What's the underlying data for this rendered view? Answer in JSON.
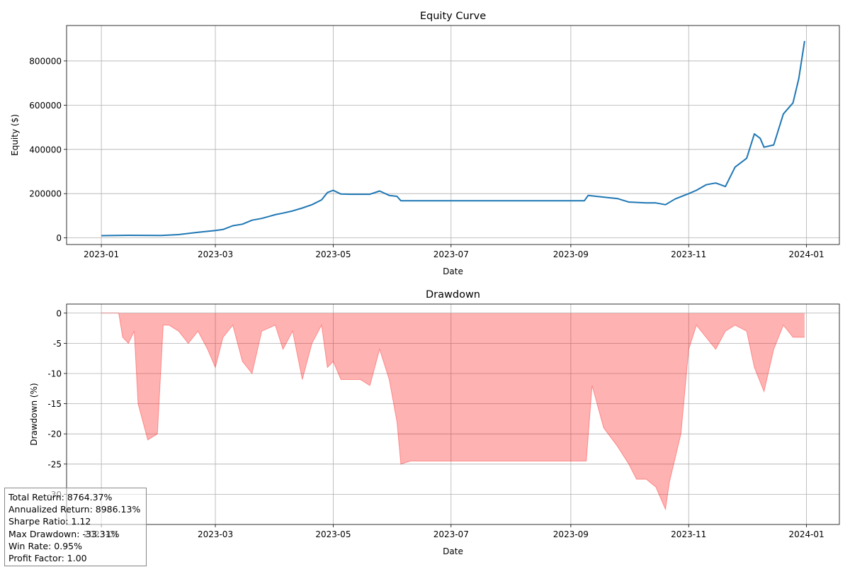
{
  "chart_data": [
    {
      "type": "line",
      "title": "Equity Curve",
      "xlabel": "Date",
      "ylabel": "Equity ($)",
      "grid": true,
      "color": "#1f77b4",
      "xlim": [
        "2022-12-14",
        "2024-01-18"
      ],
      "ylim": [
        -30000,
        960000
      ],
      "x_ticks": [
        "2023-01",
        "2023-03",
        "2023-05",
        "2023-07",
        "2023-09",
        "2023-11",
        "2024-01"
      ],
      "y_ticks": [
        0,
        200000,
        400000,
        600000,
        800000
      ],
      "series": [
        {
          "x": [
            "2023-01-01",
            "2023-01-15",
            "2023-02-01",
            "2023-02-10",
            "2023-02-20",
            "2023-03-01",
            "2023-03-05",
            "2023-03-10",
            "2023-03-15",
            "2023-03-20",
            "2023-03-25",
            "2023-04-01",
            "2023-04-05",
            "2023-04-10",
            "2023-04-15",
            "2023-04-20",
            "2023-04-25",
            "2023-04-28",
            "2023-05-01",
            "2023-05-05",
            "2023-05-10",
            "2023-05-15",
            "2023-05-20",
            "2023-05-25",
            "2023-05-30",
            "2023-06-03",
            "2023-06-05",
            "2023-06-15",
            "2023-07-01",
            "2023-08-01",
            "2023-09-01",
            "2023-09-08",
            "2023-09-10",
            "2023-09-20",
            "2023-09-25",
            "2023-10-01",
            "2023-10-10",
            "2023-10-15",
            "2023-10-20",
            "2023-10-25",
            "2023-11-01",
            "2023-11-05",
            "2023-11-10",
            "2023-11-15",
            "2023-11-20",
            "2023-11-25",
            "2023-12-01",
            "2023-12-05",
            "2023-12-08",
            "2023-12-10",
            "2023-12-15",
            "2023-12-20",
            "2023-12-25",
            "2023-12-28",
            "2023-12-31"
          ],
          "values": [
            10000,
            11500,
            11000,
            15000,
            25000,
            33000,
            38000,
            55000,
            62000,
            80000,
            88000,
            105000,
            112000,
            122000,
            135000,
            150000,
            172000,
            205000,
            215000,
            198000,
            197000,
            197000,
            197000,
            212000,
            192000,
            188000,
            168000,
            168000,
            168000,
            168000,
            168000,
            168000,
            192000,
            182000,
            178000,
            162000,
            158000,
            158000,
            150000,
            176000,
            200000,
            215000,
            240000,
            248000,
            232000,
            320000,
            360000,
            470000,
            450000,
            410000,
            420000,
            560000,
            610000,
            720000,
            890000
          ]
        }
      ]
    },
    {
      "type": "area",
      "title": "Drawdown",
      "xlabel": "Date",
      "ylabel": "Drawdown (%)",
      "grid": true,
      "color": "#ff0000",
      "fill_alpha": 0.3,
      "xlim": [
        "2022-12-14",
        "2024-01-18"
      ],
      "ylim": [
        -35,
        1.5
      ],
      "x_ticks": [
        "2023-01",
        "2023-03",
        "2023-05",
        "2023-07",
        "2023-09",
        "2023-11",
        "2024-01"
      ],
      "y_ticks": [
        0,
        -5,
        -10,
        -15,
        -20,
        -25,
        -30
      ],
      "series": [
        {
          "x": [
            "2023-01-01",
            "2023-01-10",
            "2023-01-12",
            "2023-01-15",
            "2023-01-18",
            "2023-01-20",
            "2023-01-25",
            "2023-01-30",
            "2023-02-02",
            "2023-02-05",
            "2023-02-10",
            "2023-02-15",
            "2023-02-20",
            "2023-02-25",
            "2023-03-01",
            "2023-03-05",
            "2023-03-10",
            "2023-03-15",
            "2023-03-20",
            "2023-03-25",
            "2023-04-01",
            "2023-04-05",
            "2023-04-10",
            "2023-04-15",
            "2023-04-20",
            "2023-04-25",
            "2023-04-28",
            "2023-05-01",
            "2023-05-05",
            "2023-05-10",
            "2023-05-15",
            "2023-05-20",
            "2023-05-25",
            "2023-05-30",
            "2023-06-03",
            "2023-06-05",
            "2023-06-10",
            "2023-07-01",
            "2023-08-01",
            "2023-09-01",
            "2023-09-09",
            "2023-09-12",
            "2023-09-18",
            "2023-09-25",
            "2023-10-01",
            "2023-10-05",
            "2023-10-10",
            "2023-10-15",
            "2023-10-20",
            "2023-10-22",
            "2023-10-28",
            "2023-11-01",
            "2023-11-05",
            "2023-11-10",
            "2023-11-15",
            "2023-11-20",
            "2023-11-25",
            "2023-12-01",
            "2023-12-05",
            "2023-12-10",
            "2023-12-15",
            "2023-12-20",
            "2023-12-25",
            "2023-12-31"
          ],
          "values": [
            0,
            0,
            -4,
            -5,
            -3,
            -15,
            -21,
            -20,
            -2,
            -2,
            -3,
            -5,
            -3,
            -6,
            -9,
            -4,
            -2,
            -8,
            -10,
            -3,
            -2,
            -6,
            -3,
            -11,
            -5,
            -2,
            -9,
            -8,
            -11,
            -11,
            -11,
            -12,
            -6,
            -11,
            -18,
            -25,
            -24.5,
            -24.5,
            -24.5,
            -24.5,
            -24.5,
            -12,
            -19,
            -22,
            -25,
            -27.5,
            -27.5,
            -28.8,
            -32.5,
            -28,
            -20,
            -6,
            -2,
            -4,
            -6,
            -3,
            -2,
            -3,
            -9,
            -13,
            -6,
            -2,
            -4,
            -4
          ]
        }
      ]
    }
  ],
  "stats_box": {
    "total_return": "Total Return: 8764.37%",
    "annualized_return": "Annualized Return: 8986.13%",
    "sharpe_ratio": "Sharpe Ratio: 1.12",
    "max_drawdown": "Max Drawdown: -33.31%",
    "win_rate": "Win Rate: 0.95%",
    "profit_factor": "Profit Factor: 1.00"
  }
}
